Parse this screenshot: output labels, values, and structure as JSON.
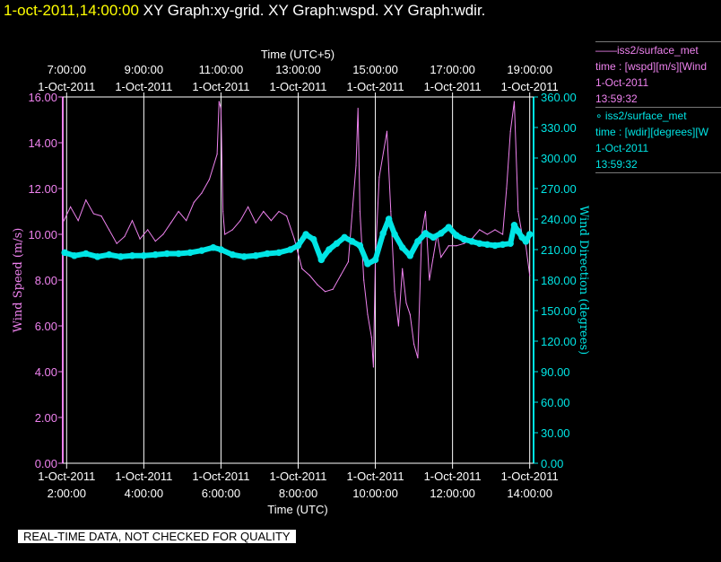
{
  "header": {
    "timestamp": "1-oct-2011,14:00:00",
    "titles": "XY Graph:xy-grid.  XY Graph:wspd.  XY Graph:wdir."
  },
  "legend": [
    {
      "line1": "——iss2/surface_met",
      "line2": "time : [wspd][m/s][Wind",
      "line3": "1-Oct-2011",
      "line4": "13:59:32"
    },
    {
      "line1": "∘ iss2/surface_met",
      "line2": "time : [wdir][degrees][W",
      "line3": "1-Oct-2011",
      "line4": "13:59:32"
    }
  ],
  "quality_note": "REAL-TIME DATA, NOT CHECKED FOR QUALITY",
  "colors": {
    "wspd": "#ee82ee",
    "wdir": "#00e5e5",
    "grid": "#ffffff"
  },
  "chart_data": {
    "type": "line",
    "top_axis_label": "Time (UTC+5)",
    "bottom_axis_label": "Time (UTC)",
    "ylabel_left": "Wind Speed (m/s)",
    "ylabel_right": "Wind Direction (degrees)",
    "ylim_left": [
      0,
      16
    ],
    "ylim_right": [
      0,
      360
    ],
    "xlim_hours_utc": [
      1.9,
      14.1
    ],
    "grid": true,
    "bottom_ticks": [
      {
        "hour": 2,
        "date": "1-Oct-2011",
        "time": "2:00:00"
      },
      {
        "hour": 4,
        "date": "1-Oct-2011",
        "time": "4:00:00"
      },
      {
        "hour": 6,
        "date": "1-Oct-2011",
        "time": "6:00:00"
      },
      {
        "hour": 8,
        "date": "1-Oct-2011",
        "time": "8:00:00"
      },
      {
        "hour": 10,
        "date": "1-Oct-2011",
        "time": "10:00:00"
      },
      {
        "hour": 12,
        "date": "1-Oct-2011",
        "time": "12:00:00"
      },
      {
        "hour": 14,
        "date": "1-Oct-2011",
        "time": "14:00:00"
      }
    ],
    "top_ticks": [
      {
        "hour": 2,
        "time": "7:00:00",
        "date": "1-Oct-2011"
      },
      {
        "hour": 4,
        "time": "9:00:00",
        "date": "1-Oct-2011"
      },
      {
        "hour": 6,
        "time": "11:00:00",
        "date": "1-Oct-2011"
      },
      {
        "hour": 8,
        "time": "13:00:00",
        "date": "1-Oct-2011"
      },
      {
        "hour": 10,
        "time": "15:00:00",
        "date": "1-Oct-2011"
      },
      {
        "hour": 12,
        "time": "17:00:00",
        "date": "1-Oct-2011"
      },
      {
        "hour": 14,
        "time": "19:00:00",
        "date": "1-Oct-2011"
      }
    ],
    "left_ticks": [
      "0.00",
      "2.00",
      "4.00",
      "6.00",
      "8.00",
      "10.00",
      "12.00",
      "14.00",
      "16.00"
    ],
    "right_ticks": [
      "0.00",
      "30.00",
      "60.00",
      "90.00",
      "120.00",
      "150.00",
      "180.00",
      "210.00",
      "240.00",
      "270.00",
      "300.00",
      "330.00",
      "360.00"
    ],
    "series": [
      {
        "name": "iss2/surface_met time : [wspd][m/s]",
        "axis": "left",
        "x": [
          1.9,
          2.1,
          2.3,
          2.5,
          2.7,
          2.9,
          3.1,
          3.3,
          3.5,
          3.7,
          3.9,
          4.1,
          4.3,
          4.5,
          4.7,
          4.9,
          5.1,
          5.3,
          5.5,
          5.7,
          5.9,
          5.95,
          6.0,
          6.05,
          6.1,
          6.3,
          6.5,
          6.7,
          6.9,
          7.1,
          7.3,
          7.5,
          7.7,
          7.9,
          8.1,
          8.3,
          8.5,
          8.7,
          8.9,
          9.1,
          9.3,
          9.5,
          9.55,
          9.6,
          9.7,
          9.8,
          9.9,
          9.95,
          10.0,
          10.1,
          10.3,
          10.4,
          10.5,
          10.6,
          10.7,
          10.8,
          10.9,
          11.0,
          11.1,
          11.2,
          11.3,
          11.4,
          11.5,
          11.6,
          11.7,
          11.9,
          12.1,
          12.3,
          12.5,
          12.7,
          12.9,
          13.1,
          13.3,
          13.4,
          13.5,
          13.6,
          13.7,
          13.8,
          13.9,
          14.0
        ],
        "values": [
          10.5,
          11.2,
          10.6,
          11.5,
          10.9,
          10.8,
          10.2,
          9.6,
          9.9,
          10.6,
          9.8,
          10.2,
          9.7,
          10.0,
          10.5,
          11.0,
          10.6,
          11.4,
          11.8,
          12.4,
          13.5,
          15.8,
          15.5,
          11.0,
          10.0,
          10.2,
          10.6,
          11.2,
          10.5,
          11.0,
          10.6,
          11.0,
          10.8,
          9.8,
          8.5,
          8.2,
          7.8,
          7.5,
          7.6,
          8.2,
          8.8,
          13.0,
          15.5,
          11.0,
          8.0,
          6.5,
          5.5,
          4.2,
          9.0,
          12.5,
          14.5,
          11.0,
          7.5,
          6.0,
          8.5,
          7.0,
          6.5,
          5.2,
          4.6,
          10.0,
          11.0,
          8.0,
          9.0,
          10.0,
          9.0,
          9.5,
          9.5,
          9.6,
          9.8,
          10.2,
          10.0,
          10.2,
          10.0,
          12.0,
          14.5,
          15.8,
          11.0,
          10.0,
          9.5,
          8.2
        ]
      },
      {
        "name": "iss2/surface_met time : [wdir][degrees]",
        "axis": "right",
        "x": [
          1.95,
          2.2,
          2.5,
          2.8,
          3.1,
          3.4,
          3.7,
          4.0,
          4.3,
          4.6,
          4.9,
          5.2,
          5.5,
          5.8,
          6.0,
          6.3,
          6.6,
          6.9,
          7.2,
          7.5,
          7.8,
          8.0,
          8.2,
          8.4,
          8.6,
          8.8,
          9.0,
          9.2,
          9.4,
          9.6,
          9.8,
          10.0,
          10.2,
          10.35,
          10.5,
          10.7,
          10.9,
          11.1,
          11.3,
          11.5,
          11.7,
          11.9,
          12.1,
          12.3,
          12.5,
          12.7,
          12.9,
          13.1,
          13.3,
          13.5,
          13.6,
          13.7,
          13.8,
          13.9,
          14.0
        ],
        "values": [
          207,
          204,
          206,
          203,
          205,
          203,
          204,
          204,
          205,
          206,
          206,
          207,
          209,
          212,
          210,
          205,
          203,
          204,
          206,
          207,
          210,
          214,
          225,
          220,
          200,
          210,
          216,
          222,
          218,
          214,
          196,
          200,
          226,
          240,
          225,
          212,
          204,
          218,
          226,
          222,
          226,
          232,
          224,
          220,
          218,
          216,
          215,
          214,
          215,
          216,
          234,
          228,
          222,
          218,
          225
        ]
      }
    ]
  }
}
